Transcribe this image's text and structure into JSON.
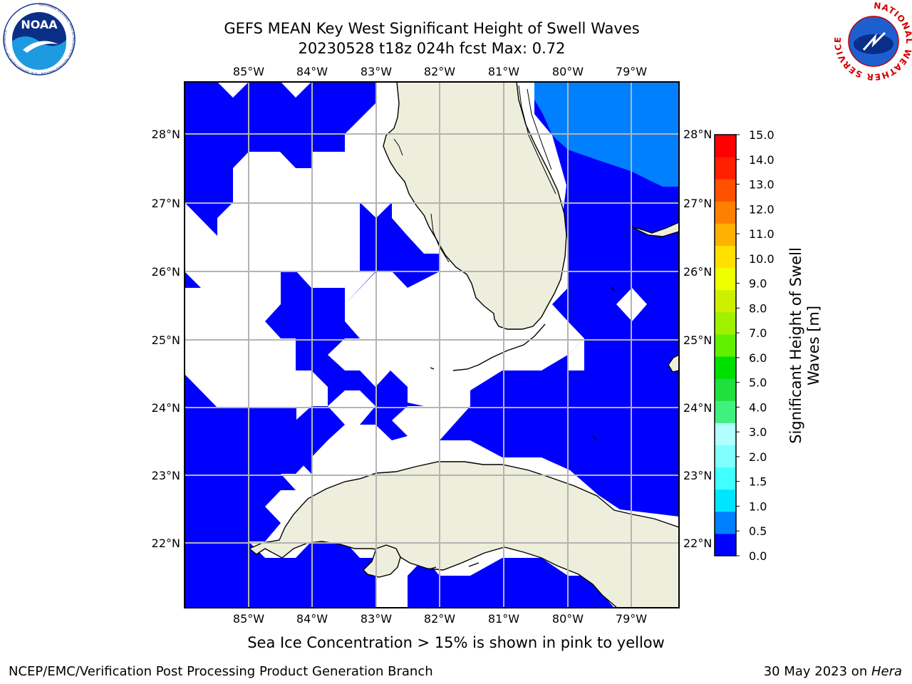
{
  "title": {
    "line1": "GEFS MEAN Key West Significant Height of Swell Waves",
    "line2": "20230528 t18z 024h fcst   Max: 0.72"
  },
  "map": {
    "lon_range": [
      -86,
      -78.3
    ],
    "lat_range": [
      21.1,
      28.77
    ],
    "lon_ticks": [
      "85°W",
      "84°W",
      "83°W",
      "82°W",
      "81°W",
      "80°W",
      "79°W"
    ],
    "lat_ticks": [
      "28°N",
      "27°N",
      "26°N",
      "25°N",
      "24°N",
      "23°N",
      "22°N"
    ],
    "land_color": "#eeeedc",
    "grid_color": "#b4b4b4"
  },
  "colorbar": {
    "label_line1": "Significant Height of Swell",
    "label_line2": "Waves [m]",
    "tick_labels": [
      "0.0",
      "0.5",
      "1.0",
      "1.5",
      "2.0",
      "3.0",
      "4.0",
      "5.0",
      "6.0",
      "7.0",
      "8.0",
      "9.0",
      "10.0",
      "11.0",
      "12.0",
      "13.0",
      "14.0",
      "15.0"
    ],
    "colors": [
      "#0000ff",
      "#0080ff",
      "#00e5ff",
      "#40ffff",
      "#80ffff",
      "#b0ffff",
      "#40f080",
      "#20e040",
      "#00e000",
      "#60f000",
      "#a0f000",
      "#ccf000",
      "#eeff00",
      "#ffe000",
      "#ffb000",
      "#ff8000",
      "#ff5000",
      "#ff2000",
      "#ff0000"
    ]
  },
  "note": "Sea Ice Concentration > 15% is shown in pink to yellow",
  "footer": {
    "left": "NCEP/EMC/Verification Post Processing Product Generation Branch",
    "right_prefix": "30 May 2023 on ",
    "right_machine": "Hera"
  },
  "logos": {
    "noaa_text": "NOAA",
    "noaa_ring": "NATIONAL OCEANIC AND ATMOSPHERIC ADMINISTRATION · U.S. DEPARTMENT OF COMMERCE",
    "nws_ring": "NATIONAL WEATHER SERVICE"
  }
}
